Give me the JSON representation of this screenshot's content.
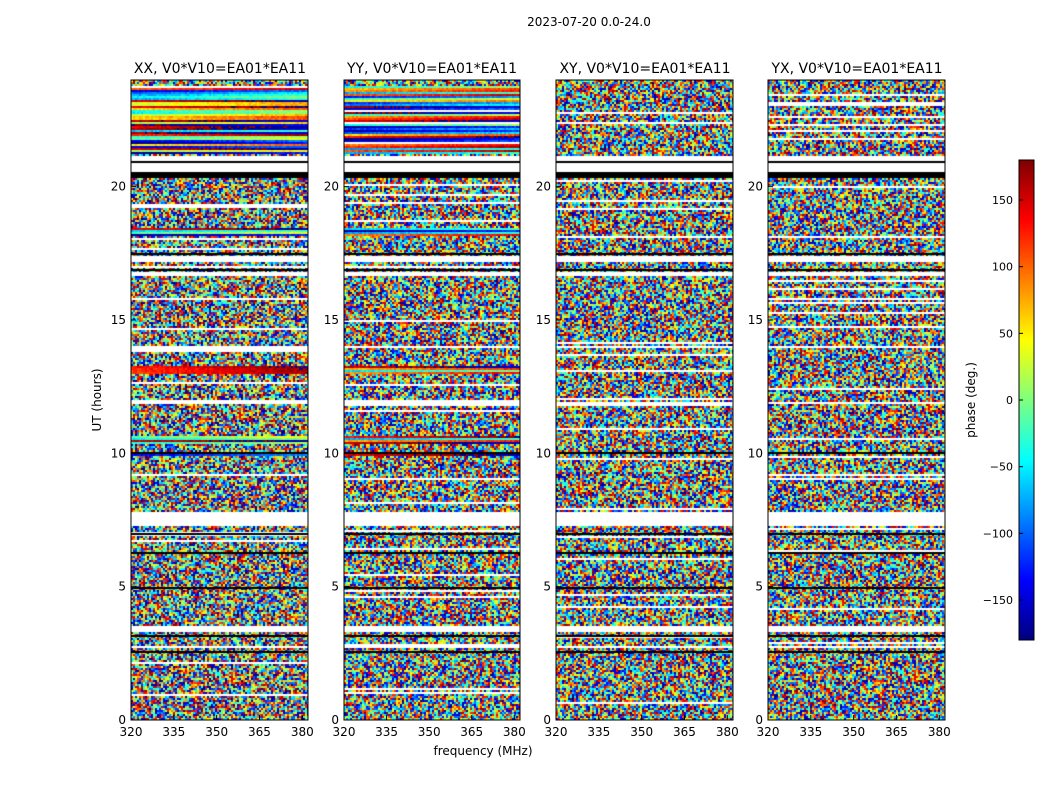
{
  "chart_data": {
    "type": "heatmap",
    "suptitle": "2023-07-20 0.0-24.0",
    "xlabel": "frequency (MHz)",
    "ylabel": "UT (hours)",
    "xlim": [
      320,
      382
    ],
    "ylim": [
      0,
      24
    ],
    "xticks": [
      320,
      335,
      350,
      365,
      380
    ],
    "yticks": [
      0,
      5,
      10,
      15,
      20
    ],
    "colorbar": {
      "label": "phase (deg.)",
      "range": [
        -180,
        180
      ],
      "ticks": [
        150,
        100,
        50,
        0,
        -50,
        -100,
        -150
      ],
      "tick_labels": [
        "150",
        "100",
        "50",
        "0",
        "−50",
        "−100",
        "−150"
      ],
      "colormap": "jet",
      "colormap_stops": [
        "#00007f",
        "#0000ff",
        "#007fff",
        "#00ffff",
        "#7fff7f",
        "#ffff00",
        "#ff7f00",
        "#ff0000",
        "#7f0000"
      ]
    },
    "panels": [
      {
        "title": "XX, V0*V10=EA01*EA11",
        "polarization": "XX"
      },
      {
        "title": "YY, V0*V10=EA01*EA11",
        "polarization": "YY"
      },
      {
        "title": "XY, V0*V10=EA01*EA11",
        "polarization": "XY"
      },
      {
        "title": "YX, V0*V10=EA01*EA11",
        "polarization": "YX"
      }
    ],
    "flagged_ut_ranges": [
      [
        20.6,
        20.9
      ],
      [
        20.9,
        21.2
      ],
      [
        17.2,
        17.45
      ],
      [
        16.7,
        16.8
      ],
      [
        14.0,
        14.05
      ],
      [
        11.9,
        11.95
      ],
      [
        10.0,
        10.1
      ],
      [
        7.3,
        7.8
      ],
      [
        3.3,
        3.6
      ],
      [
        2.75,
        2.85
      ]
    ],
    "coherent_ut_ranges": [
      [
        21.3,
        23.8
      ],
      [
        18.2,
        18.5
      ],
      [
        13.0,
        13.3
      ],
      [
        10.4,
        10.7
      ],
      [
        9.9,
        10.0
      ]
    ]
  }
}
